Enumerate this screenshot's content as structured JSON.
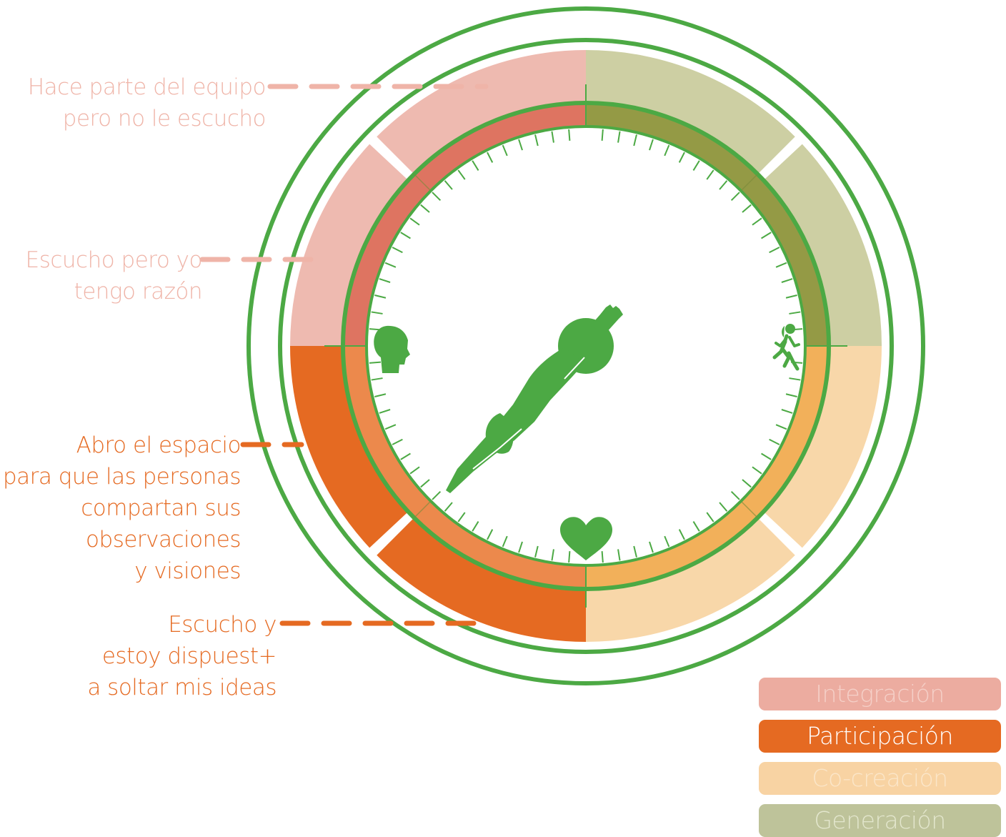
{
  "colors": {
    "green": "#4ca944",
    "integracion_light": "#eebab0",
    "integracion_dark": "#de7461",
    "participacion_light": "#e56a22",
    "participacion_dark": "#ec894c",
    "cocreacion_light": "#f8d7a9",
    "cocreacion_dark": "#f2b05a",
    "generacion_light": "#cdcfa3",
    "generacion_dark": "#949a45",
    "label_integracion": "#efb4a8",
    "label_participacion": "#e56a22",
    "legend_integracion_bg": "#ecaca0",
    "legend_integracion_text": "#f5d0c8",
    "legend_participacion_bg": "#e56a22",
    "legend_participacion_text": "#ffffff",
    "legend_cocreacion_bg": "#f8d3a3",
    "legend_cocreacion_text": "#fbe6c9",
    "legend_generacion_bg": "#bec39a",
    "legend_generacion_text": "#e3e6cd"
  },
  "labels": {
    "team": [
      "Hace parte del equipo",
      "pero no le escucho"
    ],
    "right": [
      "Escucho pero yo",
      "tengo razón"
    ],
    "space": [
      "Abro el espacio",
      "para que las personas",
      "compartan sus",
      "observaciones",
      "y visiones"
    ],
    "listen": [
      "Escucho y",
      "estoy dispuest+",
      "a soltar mis ideas"
    ]
  },
  "legend": {
    "integracion": "Integración",
    "participacion": "Participación",
    "cocreacion": "Co-creación",
    "generacion": "Generación"
  },
  "icons": {
    "head": "head-profile-icon",
    "runner": "runner-icon",
    "heart": "heart-icon",
    "diver": "diving-figure-icon"
  }
}
